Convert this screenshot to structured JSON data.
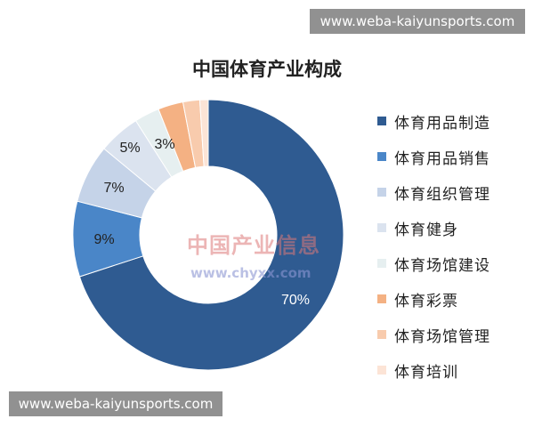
{
  "banners": {
    "top": "www.weba-kaiyunsports.com",
    "bottom": "www.weba-kaiyunsports.com"
  },
  "watermark": {
    "name": "中国产业信息",
    "url": "www.chyxx.com"
  },
  "chart_data": {
    "type": "pie",
    "subtype": "donut",
    "title": "中国体育产业构成",
    "legend_position": "right",
    "categories": [
      "体育用品制造",
      "体育用品销售",
      "体育组织管理",
      "体育健身",
      "体育场馆建设",
      "体育彩票",
      "体育场馆管理",
      "体育培训"
    ],
    "values": [
      70,
      9,
      7,
      5,
      3,
      3,
      2,
      1
    ],
    "data_labels": [
      "70%",
      "9%",
      "7%",
      "5%",
      "3%",
      "",
      "",
      ""
    ],
    "colors": [
      "#2f5b91",
      "#4a86c8",
      "#c5d3e8",
      "#dbe3ef",
      "#e6eff0",
      "#f4b183",
      "#f8cbad",
      "#fce4d6"
    ]
  }
}
